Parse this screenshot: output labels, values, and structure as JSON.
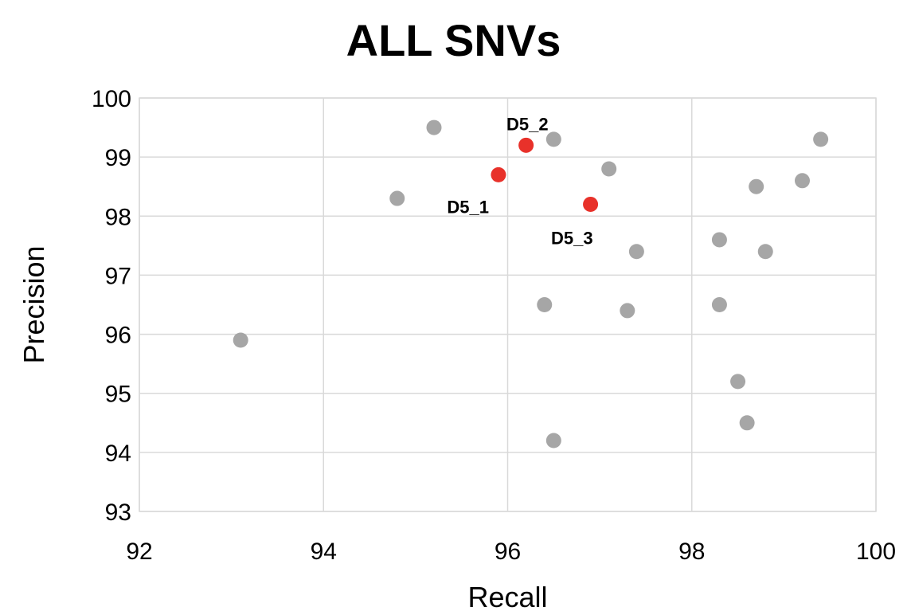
{
  "chart_data": {
    "type": "scatter",
    "title": "ALL SNVs",
    "xlabel": "Recall",
    "ylabel": "Precision",
    "xlim": [
      92,
      100
    ],
    "ylim": [
      93,
      100
    ],
    "xticks": [
      92,
      94,
      96,
      98,
      100
    ],
    "yticks": [
      93,
      94,
      95,
      96,
      97,
      98,
      99,
      100
    ],
    "grid": true,
    "colors": {
      "other": "#a6a6a6",
      "highlight": "#e8312a"
    },
    "series": [
      {
        "color_key": "other",
        "points": [
          {
            "x": 93.1,
            "y": 95.9
          },
          {
            "x": 94.8,
            "y": 98.3
          },
          {
            "x": 95.2,
            "y": 99.5
          },
          {
            "x": 96.5,
            "y": 99.3
          },
          {
            "x": 97.1,
            "y": 98.8
          },
          {
            "x": 97.4,
            "y": 97.4
          },
          {
            "x": 96.4,
            "y": 96.5
          },
          {
            "x": 97.3,
            "y": 96.4
          },
          {
            "x": 96.5,
            "y": 94.2
          },
          {
            "x": 98.3,
            "y": 97.6
          },
          {
            "x": 98.3,
            "y": 96.5
          },
          {
            "x": 98.5,
            "y": 95.2
          },
          {
            "x": 98.6,
            "y": 94.5
          },
          {
            "x": 98.7,
            "y": 98.5
          },
          {
            "x": 98.8,
            "y": 97.4
          },
          {
            "x": 99.2,
            "y": 98.6
          },
          {
            "x": 99.4,
            "y": 99.3
          }
        ]
      },
      {
        "color_key": "highlight",
        "points": [
          {
            "x": 95.9,
            "y": 98.7,
            "label": "D5_1",
            "label_pos": "below-left"
          },
          {
            "x": 96.2,
            "y": 99.2,
            "label": "D5_2",
            "label_pos": "above-left"
          },
          {
            "x": 96.9,
            "y": 98.2,
            "label": "D5_3",
            "label_pos": "below"
          }
        ]
      }
    ]
  }
}
